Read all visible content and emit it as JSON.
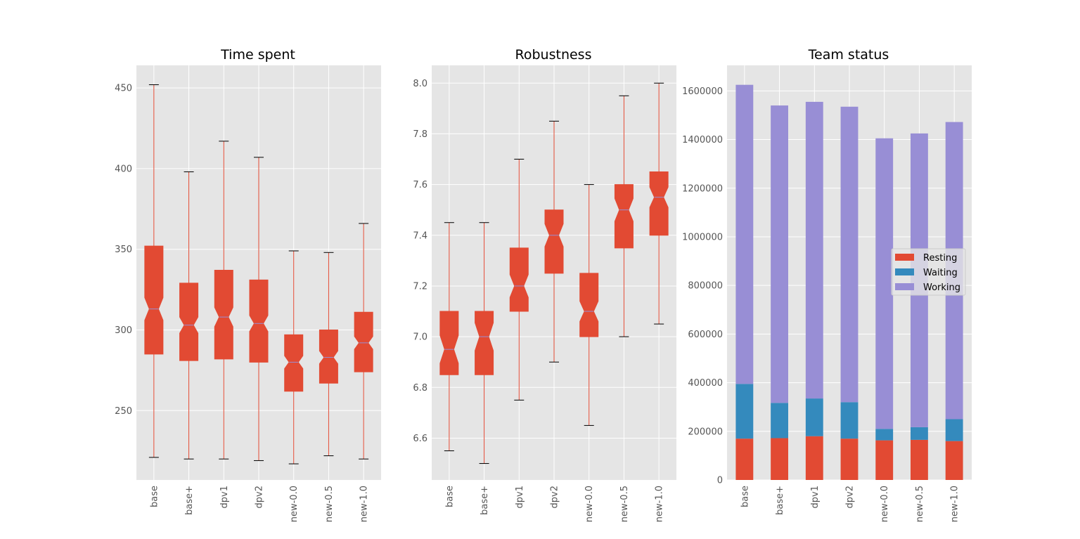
{
  "chart_data": [
    {
      "type": "box",
      "title": "Time spent",
      "categories": [
        "base",
        "base+",
        "dpv1",
        "dpv2",
        "new-0.0",
        "new-0.5",
        "new-1.0"
      ],
      "boxes": [
        {
          "whisker_low": 221,
          "q1": 285,
          "median": 313,
          "q3": 352,
          "whisker_high": 452
        },
        {
          "whisker_low": 220,
          "q1": 281,
          "median": 303,
          "q3": 329,
          "whisker_high": 398
        },
        {
          "whisker_low": 220,
          "q1": 282,
          "median": 308,
          "q3": 337,
          "whisker_high": 417
        },
        {
          "whisker_low": 219,
          "q1": 280,
          "median": 304,
          "q3": 331,
          "whisker_high": 407
        },
        {
          "whisker_low": 217,
          "q1": 262,
          "median": 280,
          "q3": 297,
          "whisker_high": 349
        },
        {
          "whisker_low": 222,
          "q1": 267,
          "median": 283,
          "q3": 300,
          "whisker_high": 348
        },
        {
          "whisker_low": 220,
          "q1": 274,
          "median": 292,
          "q3": 311,
          "whisker_high": 366
        }
      ],
      "notch_halfwidth": [
        7,
        5,
        6,
        5,
        4,
        4,
        4
      ],
      "ylim": [
        207,
        464
      ],
      "yticks": [
        250,
        300,
        350,
        400,
        450
      ],
      "grid": true,
      "color": "#e24a33"
    },
    {
      "type": "box",
      "title": "Robustness",
      "categories": [
        "base",
        "base+",
        "dpv1",
        "dpv2",
        "new-0.0",
        "new-0.5",
        "new-1.0"
      ],
      "boxes": [
        {
          "whisker_low": 6.55,
          "q1": 6.85,
          "median": 6.95,
          "q3": 7.1,
          "whisker_high": 7.45
        },
        {
          "whisker_low": 6.5,
          "q1": 6.85,
          "median": 7.0,
          "q3": 7.1,
          "whisker_high": 7.45
        },
        {
          "whisker_low": 6.75,
          "q1": 7.1,
          "median": 7.2,
          "q3": 7.35,
          "whisker_high": 7.7
        },
        {
          "whisker_low": 6.9,
          "q1": 7.25,
          "median": 7.4,
          "q3": 7.5,
          "whisker_high": 7.85
        },
        {
          "whisker_low": 6.65,
          "q1": 7.0,
          "median": 7.1,
          "q3": 7.25,
          "whisker_high": 7.6
        },
        {
          "whisker_low": 7.0,
          "q1": 7.35,
          "median": 7.5,
          "q3": 7.6,
          "whisker_high": 7.95
        },
        {
          "whisker_low": 7.05,
          "q1": 7.4,
          "median": 7.55,
          "q3": 7.65,
          "whisker_high": 8.0
        }
      ],
      "notch_halfwidth": [
        0.055,
        0.055,
        0.045,
        0.045,
        0.04,
        0.045,
        0.04
      ],
      "ylim": [
        6.435,
        8.07
      ],
      "yticks": [
        6.6,
        6.8,
        7.0,
        7.2,
        7.4,
        7.6,
        7.8,
        8.0
      ],
      "grid": true,
      "color": "#e24a33"
    },
    {
      "type": "bar",
      "stacked": true,
      "title": "Team status",
      "categories": [
        "base",
        "base+",
        "dpv1",
        "dpv2",
        "new-0.0",
        "new-0.5",
        "new-1.0"
      ],
      "series": [
        {
          "name": "Resting",
          "color": "#e24a33",
          "values": [
            170000,
            172000,
            180000,
            170000,
            163000,
            165000,
            160000
          ]
        },
        {
          "name": "Waiting",
          "color": "#348abd",
          "values": [
            225000,
            145000,
            155000,
            150000,
            47000,
            52000,
            90000
          ]
        },
        {
          "name": "Working",
          "color": "#988ed5",
          "values": [
            1230000,
            1223000,
            1220000,
            1215000,
            1195000,
            1208000,
            1222000
          ]
        }
      ],
      "ylim": [
        0,
        1705000
      ],
      "yticks": [
        0,
        200000,
        400000,
        600000,
        800000,
        1000000,
        1200000,
        1400000,
        1600000
      ],
      "legend": "center-right",
      "grid": true
    }
  ]
}
